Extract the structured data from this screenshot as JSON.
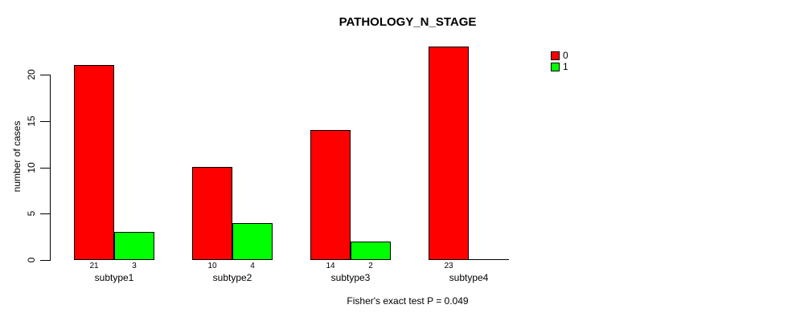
{
  "chart_data": {
    "type": "bar",
    "title": "PATHOLOGY_N_STAGE",
    "subtitle": "Fisher's exact test P = 0.049",
    "ylabel": "number of cases",
    "xlabel": "",
    "categories": [
      "subtype1",
      "subtype2",
      "subtype3",
      "subtype4"
    ],
    "series": [
      {
        "name": "0",
        "color": "#ff0000",
        "values": [
          21,
          10,
          14,
          23
        ]
      },
      {
        "name": "1",
        "color": "#00ff00",
        "values": [
          3,
          4,
          2,
          0
        ]
      }
    ],
    "yticks": [
      0,
      5,
      10,
      15,
      20
    ],
    "ylim": [
      0,
      23
    ],
    "grid": false,
    "legend_position": "right",
    "show_zero_value_labels": false,
    "colors": {
      "bar_border": "#000000",
      "axis": "#000000",
      "text": "#000000",
      "background": "#ffffff"
    }
  }
}
